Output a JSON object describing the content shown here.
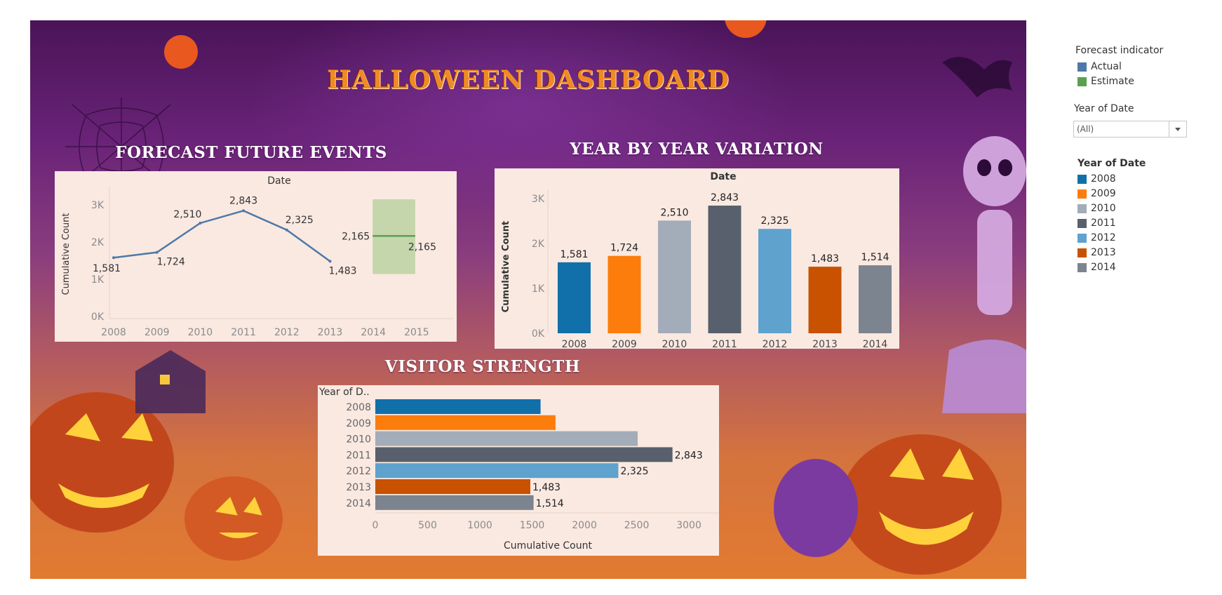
{
  "dashboard": {
    "title": "HALLOWEEN DASHBOARD",
    "colors": {
      "title": "#f08a24",
      "panel_bg": "#fae9e1"
    }
  },
  "panels": {
    "forecast_title": "FORECAST FUTURE EVENTS",
    "variation_title": "YEAR BY YEAR VARIATION",
    "visitor_title": "VISITOR STRENGTH"
  },
  "background": {
    "icons": [
      "pumpkin-icon",
      "skeleton-icon",
      "spiderweb-icon",
      "bat-icon",
      "haunted-house-icon"
    ]
  },
  "chart_data": [
    {
      "id": "forecast",
      "type": "line",
      "title": "FORECAST FUTURE EVENTS",
      "header": "Date",
      "ylabel": "Cumulative Count",
      "xlabel": "",
      "x": [
        "2008",
        "2009",
        "2010",
        "2011",
        "2012",
        "2013",
        "2014",
        "2015"
      ],
      "yticks": [
        "0K",
        "1K",
        "2K",
        "3K"
      ],
      "ylim": [
        0,
        3000
      ],
      "grid": false,
      "series": [
        {
          "name": "Actual",
          "x": [
            "2008",
            "2009",
            "2010",
            "2011",
            "2012",
            "2013"
          ],
          "values": [
            1581,
            1724,
            2510,
            2843,
            2325,
            1483
          ],
          "labels": [
            "1,581",
            "1,724",
            "2,510",
            "2,843",
            "2,325",
            "1,483"
          ],
          "color": "#4e79a7"
        },
        {
          "name": "Estimate",
          "x": [
            "2014",
            "2015"
          ],
          "values": [
            2165,
            2165
          ],
          "labels": [
            "2,165",
            "2,165"
          ],
          "color": "#59a14f",
          "band": [
            1140,
            3150
          ],
          "band_color": "#c5d6ad"
        }
      ]
    },
    {
      "id": "variation",
      "type": "bar",
      "title": "YEAR BY YEAR VARIATION",
      "header": "Date",
      "ylabel": "Cumulative Count",
      "xlabel": "",
      "categories": [
        "2008",
        "2009",
        "2010",
        "2011",
        "2012",
        "2013",
        "2014"
      ],
      "values": [
        1581,
        1724,
        2510,
        2843,
        2325,
        1483,
        1514
      ],
      "labels": [
        "1,581",
        "1,724",
        "2,510",
        "2,843",
        "2,325",
        "1,483",
        "1,514"
      ],
      "colors": [
        "#1170aa",
        "#fc7d0b",
        "#a3acb9",
        "#57606c",
        "#5fa2ce",
        "#c85200",
        "#7b848f"
      ],
      "yticks": [
        "0K",
        "1K",
        "2K",
        "3K"
      ],
      "ylim": [
        0,
        3000
      ],
      "grid": false
    },
    {
      "id": "visitor",
      "type": "bar",
      "orientation": "horizontal",
      "title": "VISITOR STRENGTH",
      "header": "Year of D..",
      "xlabel": "Cumulative Count",
      "categories": [
        "2008",
        "2009",
        "2010",
        "2011",
        "2012",
        "2013",
        "2014"
      ],
      "values": [
        1581,
        1724,
        2510,
        2843,
        2325,
        1483,
        1514
      ],
      "labels": [
        "",
        "",
        "",
        "2,843",
        "2,325",
        "1,483",
        "1,514"
      ],
      "colors": [
        "#1170aa",
        "#fc7d0b",
        "#a3acb9",
        "#57606c",
        "#5fa2ce",
        "#c85200",
        "#7b848f"
      ],
      "xticks": [
        "0",
        "500",
        "1000",
        "1500",
        "2000",
        "2500",
        "3000"
      ],
      "xlim": [
        0,
        3150
      ],
      "grid": false
    }
  ],
  "sidebar": {
    "forecast_legend_title": "Forecast indicator",
    "forecast_legend": [
      {
        "label": "Actual",
        "color": "#4e79a7"
      },
      {
        "label": "Estimate",
        "color": "#59a14f"
      }
    ],
    "filter_title": "Year of Date",
    "filter_value": "(All)",
    "year_legend_title": "Year of Date",
    "year_legend": [
      {
        "label": "2008",
        "color": "#1170aa"
      },
      {
        "label": "2009",
        "color": "#fc7d0b"
      },
      {
        "label": "2010",
        "color": "#a3acb9"
      },
      {
        "label": "2011",
        "color": "#57606c"
      },
      {
        "label": "2012",
        "color": "#5fa2ce"
      },
      {
        "label": "2013",
        "color": "#c85200"
      },
      {
        "label": "2014",
        "color": "#7b848f"
      }
    ]
  }
}
